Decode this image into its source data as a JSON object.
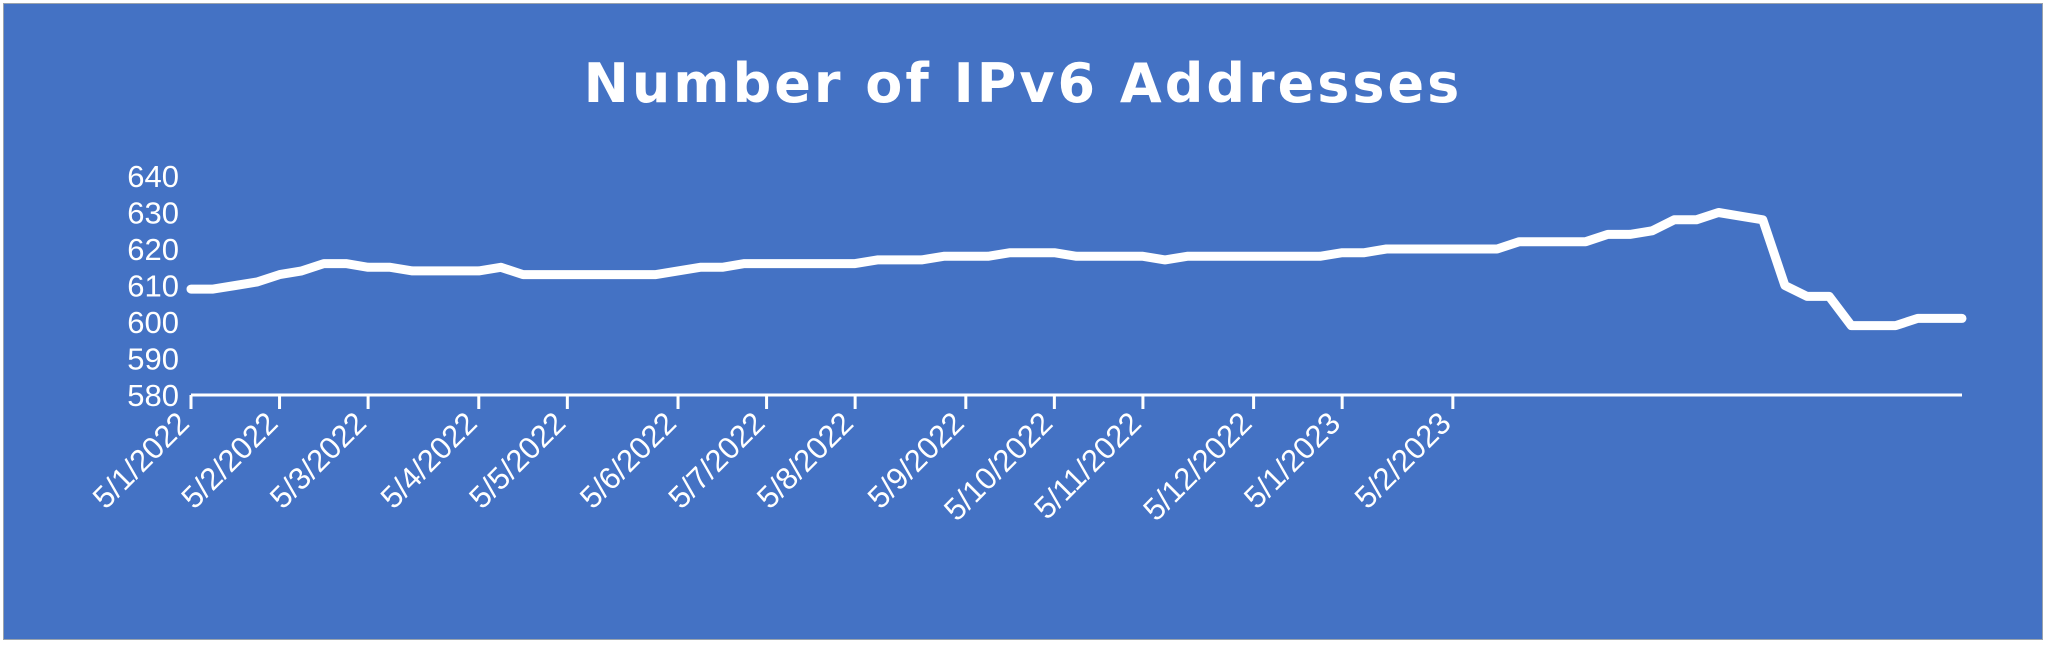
{
  "chart_data": {
    "type": "area",
    "title": "Number of IPv6 Addresses",
    "xlabel": "",
    "ylabel": "",
    "ylim": [
      580,
      640
    ],
    "yticks": [
      580,
      590,
      600,
      610,
      620,
      630,
      640
    ],
    "xticks": [
      "5/1/2022",
      "5/2/2022",
      "5/3/2022",
      "5/4/2022",
      "5/5/2022",
      "5/6/2022",
      "5/7/2022",
      "5/8/2022",
      "5/9/2022",
      "5/10/2022",
      "5/11/2022",
      "5/12/2022",
      "5/1/2023",
      "5/2/2023"
    ],
    "grid": false,
    "legend": "none",
    "colors": {
      "background": "#4472C4",
      "line": "#FFFFFF",
      "fill": "#FFFFFF"
    },
    "series": [
      {
        "points": [
          [
            "2022-01-05",
            609
          ],
          [
            "2022-01-12",
            609
          ],
          [
            "2022-01-19",
            610
          ],
          [
            "2022-01-26",
            611
          ],
          [
            "2022-02-02",
            613
          ],
          [
            "2022-02-09",
            614
          ],
          [
            "2022-02-16",
            616
          ],
          [
            "2022-02-23",
            616
          ],
          [
            "2022-03-02",
            615
          ],
          [
            "2022-03-09",
            615
          ],
          [
            "2022-03-16",
            614
          ],
          [
            "2022-03-23",
            614
          ],
          [
            "2022-03-30",
            614
          ],
          [
            "2022-04-06",
            614
          ],
          [
            "2022-04-13",
            615
          ],
          [
            "2022-04-20",
            613
          ],
          [
            "2022-04-27",
            613
          ],
          [
            "2022-05-04",
            613
          ],
          [
            "2022-05-11",
            613
          ],
          [
            "2022-05-18",
            613
          ],
          [
            "2022-05-25",
            613
          ],
          [
            "2022-06-01",
            613
          ],
          [
            "2022-06-08",
            614
          ],
          [
            "2022-06-15",
            615
          ],
          [
            "2022-06-22",
            615
          ],
          [
            "2022-06-29",
            616
          ],
          [
            "2022-07-06",
            616
          ],
          [
            "2022-07-13",
            616
          ],
          [
            "2022-07-20",
            616
          ],
          [
            "2022-07-27",
            616
          ],
          [
            "2022-08-03",
            616
          ],
          [
            "2022-08-10",
            617
          ],
          [
            "2022-08-17",
            617
          ],
          [
            "2022-08-24",
            617
          ],
          [
            "2022-08-31",
            618
          ],
          [
            "2022-09-07",
            618
          ],
          [
            "2022-09-14",
            618
          ],
          [
            "2022-09-21",
            619
          ],
          [
            "2022-09-28",
            619
          ],
          [
            "2022-10-05",
            619
          ],
          [
            "2022-10-12",
            618
          ],
          [
            "2022-10-19",
            618
          ],
          [
            "2022-10-26",
            618
          ],
          [
            "2022-11-02",
            618
          ],
          [
            "2022-11-09",
            617
          ],
          [
            "2022-11-16",
            618
          ],
          [
            "2022-11-23",
            618
          ],
          [
            "2022-11-30",
            618
          ],
          [
            "2022-12-07",
            618
          ],
          [
            "2022-12-14",
            618
          ],
          [
            "2022-12-21",
            618
          ],
          [
            "2022-12-28",
            618
          ],
          [
            "2023-01-04",
            619
          ],
          [
            "2023-01-11",
            619
          ],
          [
            "2023-01-18",
            620
          ],
          [
            "2023-01-25",
            620
          ],
          [
            "2023-02-01",
            620
          ],
          [
            "2023-02-08",
            620
          ],
          [
            "2023-02-15",
            620
          ],
          [
            "2023-02-22",
            620
          ],
          [
            "2023-03-01",
            622
          ],
          [
            "2023-03-08",
            622
          ],
          [
            "2023-03-15",
            622
          ],
          [
            "2023-03-22",
            622
          ],
          [
            "2023-03-29",
            624
          ],
          [
            "2023-04-05",
            624
          ],
          [
            "2023-04-12",
            625
          ],
          [
            "2023-04-19",
            628
          ],
          [
            "2023-04-26",
            628
          ],
          [
            "2023-05-03",
            630
          ],
          [
            "2023-05-10",
            629
          ],
          [
            "2023-05-17",
            628
          ],
          [
            "2023-05-24",
            610
          ],
          [
            "2023-05-31",
            607
          ],
          [
            "2023-06-07",
            607
          ],
          [
            "2023-06-14",
            599
          ],
          [
            "2023-06-21",
            599
          ],
          [
            "2023-06-28",
            599
          ],
          [
            "2023-07-05",
            601
          ],
          [
            "2023-07-12",
            601
          ],
          [
            "2023-07-19",
            601
          ]
        ]
      }
    ]
  }
}
